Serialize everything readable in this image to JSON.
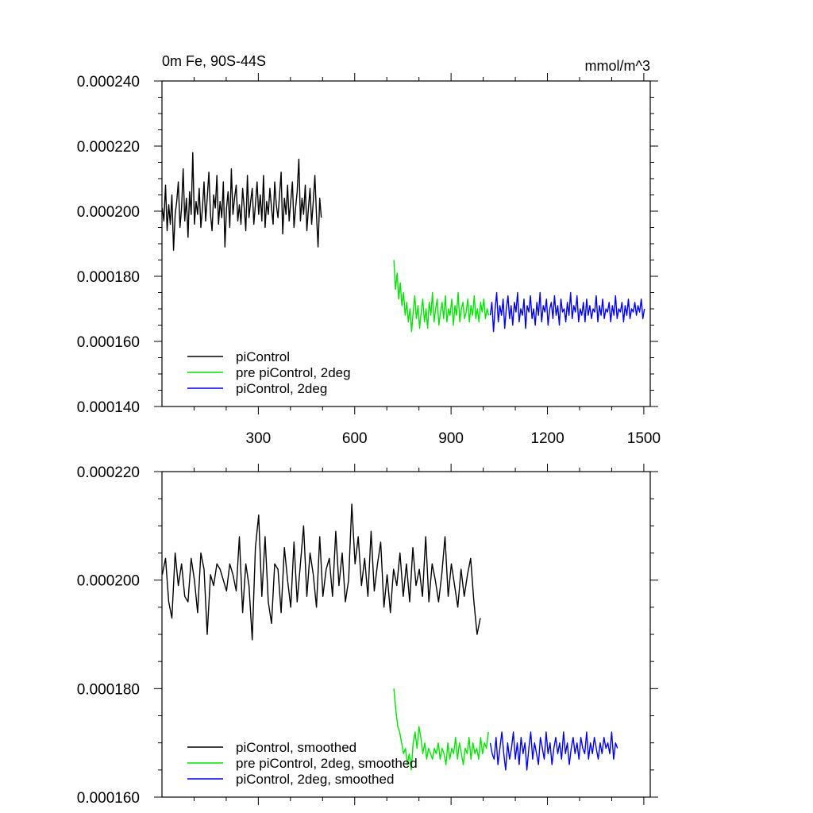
{
  "chart_data": [
    {
      "type": "line",
      "title": "0m Fe, 90S-44S",
      "units": "mmol/m^3",
      "xlim": [
        0,
        1520
      ],
      "ylim": [
        0.00014,
        0.00024
      ],
      "x_ticks": [
        300,
        600,
        900,
        1200,
        1500
      ],
      "x_tick_labels": [
        "300",
        "600",
        "900",
        "1200",
        "1500"
      ],
      "y_ticks": [
        0.00014,
        0.00016,
        0.00018,
        0.0002,
        0.00022,
        0.00024
      ],
      "y_tick_labels": [
        "0.000140",
        "0.000160",
        "0.000180",
        "0.000200",
        "0.000220",
        "0.000240"
      ],
      "legend_position": "bottom-left",
      "series": [
        {
          "name": "piControl",
          "color": "#000000",
          "x_start": 1,
          "x_step": 5,
          "values": [
            0.000201,
            0.000197,
            0.000208,
            0.000194,
            0.000202,
            0.000196,
            0.000205,
            0.000188,
            0.000199,
            0.000203,
            0.000209,
            0.000195,
            0.000201,
            0.000213,
            0.000197,
            0.000204,
            0.000192,
            0.000206,
            0.000199,
            0.000218,
            0.000196,
            0.000203,
            0.000199,
            0.000207,
            0.000195,
            0.000201,
            0.000209,
            0.000197,
            0.000204,
            0.000212,
            0.000199,
            0.000194,
            0.000205,
            0.000201,
            0.000211,
            0.000196,
            0.000203,
            0.000198,
            0.000209,
            0.000189,
            0.000201,
            0.000206,
            0.000195,
            0.000213,
            0.000199,
            0.000204,
            0.000208,
            0.000197,
            0.000202,
            0.000196,
            0.000207,
            0.000201,
            0.000194,
            0.000211,
            0.000198,
            0.000203,
            0.000207,
            0.000196,
            0.000202,
            0.000209,
            0.000199,
            0.000205,
            0.000197,
            0.000211,
            0.000195,
            0.000203,
            0.000199,
            0.000207,
            0.000201,
            0.000196,
            0.000209,
            0.000202,
            0.000198,
            0.000205,
            0.000212,
            0.000193,
            0.000204,
            0.000199,
            0.000208,
            0.000197,
            0.000203,
            0.000209,
            0.000195,
            0.000201,
            0.000206,
            0.000216,
            0.000197,
            0.000204,
            0.000199,
            0.000208,
            0.000194,
            0.000201,
            0.000207,
            0.000196,
            0.000203,
            0.000211,
            0.000199,
            0.000189,
            0.000204,
            0.000198
          ],
          "x_start_2": null
        },
        {
          "name": "pre piControl, 2deg",
          "color": "#00e600",
          "x_start": 722,
          "x_step": 5,
          "values": [
            0.000185,
            0.000176,
            0.000181,
            0.000173,
            0.000178,
            0.000171,
            0.000175,
            0.000168,
            0.000172,
            0.000166,
            0.00017,
            0.000163,
            0.000169,
            0.000174,
            0.000167,
            0.000171,
            0.000164,
            0.000169,
            0.000173,
            0.000166,
            0.00017,
            0.000164,
            0.000172,
            0.000168,
            0.000175,
            0.000166,
            0.00017,
            0.000173,
            0.000165,
            0.000169,
            0.000172,
            0.000167,
            0.000174,
            0.000166,
            0.00017,
            0.000168,
            0.000173,
            0.000165,
            0.000171,
            0.000168,
            0.000175,
            0.000166,
            0.00017,
            0.000172,
            0.000167,
            0.000169,
            0.000173,
            0.000166,
            0.000171,
            0.000168,
            0.000174,
            0.000167,
            0.00017,
            0.000166,
            0.000172,
            0.000169,
            0.000173,
            0.000167,
            0.00017,
            0.000168
          ]
        },
        {
          "name": "piControl, 2deg",
          "color": "#0000ee",
          "x_start": 1022,
          "x_step": 5,
          "values": [
            0.000168,
            0.000172,
            0.000163,
            0.00017,
            0.000175,
            0.000166,
            0.000171,
            0.000168,
            0.000173,
            0.000164,
            0.00017,
            0.000174,
            0.000167,
            0.000171,
            0.000165,
            0.000172,
            0.000169,
            0.000175,
            0.000166,
            0.00017,
            0.000168,
            0.000173,
            0.000164,
            0.000171,
            0.000169,
            0.000174,
            0.000167,
            0.00017,
            0.000165,
            0.000172,
            0.000168,
            0.000175,
            0.000166,
            0.000171,
            0.000169,
            0.000173,
            0.000165,
            0.00017,
            0.000172,
            0.000167,
            0.000174,
            0.000168,
            0.000171,
            0.000165,
            0.000173,
            0.000169,
            0.00017,
            0.000166,
            0.000172,
            0.000168,
            0.000175,
            0.000167,
            0.000171,
            0.000169,
            0.000174,
            0.000166,
            0.00017,
            0.000168,
            0.000172,
            0.000166,
            0.000173,
            0.000168,
            0.000171,
            0.000167,
            0.00017,
            0.000169,
            0.000174,
            0.000166,
            0.000171,
            0.000168,
            0.000173,
            0.000167,
            0.00017,
            0.000169,
            0.000172,
            0.000166,
            0.000171,
            0.000168,
            0.000174,
            0.000167,
            0.00017,
            0.000169,
            0.000172,
            0.000166,
            0.000171,
            0.000168,
            0.000173,
            0.000167,
            0.00017,
            0.000169,
            0.000172,
            0.000168,
            0.000171,
            0.000169,
            0.000173,
            0.000167,
            0.00017
          ]
        }
      ]
    },
    {
      "type": "line",
      "title": "",
      "units": "",
      "xlim": [
        0,
        1520
      ],
      "ylim": [
        0.00016,
        0.00022
      ],
      "x_ticks": [
        300,
        600,
        900,
        1200,
        1500
      ],
      "x_tick_labels": [],
      "y_ticks": [
        0.00016,
        0.00018,
        0.0002,
        0.00022
      ],
      "y_tick_labels": [
        "0.000160",
        "0.000180",
        "0.000200",
        "0.000220"
      ],
      "legend_position": "bottom-left",
      "series": [
        {
          "name": "piControl, smoothed",
          "color": "#000000",
          "x_start": 1,
          "x_step": 10,
          "values": [
            0.000201,
            0.000204,
            0.000196,
            0.000193,
            0.000205,
            0.000199,
            0.000203,
            0.000197,
            0.000196,
            0.000204,
            0.0002,
            0.000194,
            0.000205,
            0.000202,
            0.00019,
            0.000201,
            0.000199,
            0.000203,
            0.000202,
            0.0002,
            0.000198,
            0.000203,
            0.000201,
            0.000198,
            0.000208,
            0.000194,
            0.000203,
            0.000199,
            0.000189,
            0.000206,
            0.000212,
            0.000197,
            0.000208,
            0.000196,
            0.000192,
            0.000203,
            0.000202,
            0.000194,
            0.000206,
            0.0002,
            0.000195,
            0.000207,
            0.000196,
            0.000203,
            0.00021,
            0.000197,
            0.000205,
            0.000201,
            0.000195,
            0.000208,
            0.000197,
            0.000202,
            0.000204,
            0.000197,
            0.000209,
            0.000199,
            0.000205,
            0.000196,
            0.0002,
            0.000214,
            0.000203,
            0.000208,
            0.000199,
            0.000204,
            0.000197,
            0.000209,
            0.000198,
            0.000203,
            0.000207,
            0.000195,
            0.000201,
            0.000194,
            0.000202,
            0.000199,
            0.000205,
            0.000197,
            0.000203,
            0.000196,
            0.000206,
            0.000199,
            0.000202,
            0.000197,
            0.000208,
            0.000196,
            0.000203,
            0.0002,
            0.000196,
            0.000201,
            0.000208,
            0.000197,
            0.000203,
            0.000199,
            0.000195,
            0.000202,
            0.000197,
            0.000201,
            0.000204,
            0.000196,
            0.00019,
            0.000193
          ]
        },
        {
          "name": "pre piControl, 2deg, smoothed",
          "color": "#00e600",
          "x_start": 722,
          "x_step": 6,
          "values": [
            0.00018,
            0.000176,
            0.000173,
            0.000172,
            0.00017,
            0.000168,
            0.000169,
            0.000166,
            0.000168,
            0.000165,
            0.00017,
            0.000172,
            0.000169,
            0.000173,
            0.000171,
            0.000168,
            0.00017,
            0.000167,
            0.000169,
            0.000168,
            0.000167,
            0.000169,
            0.000168,
            0.00017,
            0.000167,
            0.000169,
            0.000168,
            0.000166,
            0.00017,
            0.000167,
            0.000169,
            0.000168,
            0.000171,
            0.000167,
            0.00017,
            0.000168,
            0.000166,
            0.000169,
            0.000168,
            0.000171,
            0.000167,
            0.00017,
            0.000168,
            0.000169,
            0.000167,
            0.000171,
            0.000168,
            0.00017,
            0.000169,
            0.000172
          ]
        },
        {
          "name": "piControl, 2deg, smoothed",
          "color": "#0000ee",
          "x_start": 1022,
          "x_step": 6,
          "values": [
            0.00017,
            0.000168,
            0.000167,
            0.000171,
            0.000166,
            0.000169,
            0.000172,
            0.000168,
            0.000165,
            0.00017,
            0.000167,
            0.000169,
            0.000172,
            0.000167,
            0.00017,
            0.000166,
            0.000171,
            0.000168,
            0.00017,
            0.000165,
            0.000169,
            0.000172,
            0.000167,
            0.00017,
            0.000168,
            0.000166,
            0.000171,
            0.000169,
            0.000167,
            0.000172,
            0.000168,
            0.00017,
            0.000166,
            0.000169,
            0.000171,
            0.000168,
            0.00017,
            0.000167,
            0.000172,
            0.000168,
            0.00017,
            0.000166,
            0.000169,
            0.000171,
            0.000168,
            0.00017,
            0.000167,
            0.000171,
            0.000169,
            0.000168,
            0.000172,
            0.000167,
            0.00017,
            0.000168,
            0.000171,
            0.000169,
            0.000167,
            0.00017,
            0.000168,
            0.000171,
            0.000169,
            0.00017,
            0.000168,
            0.000172,
            0.000167,
            0.00017,
            0.000169
          ]
        }
      ]
    }
  ]
}
